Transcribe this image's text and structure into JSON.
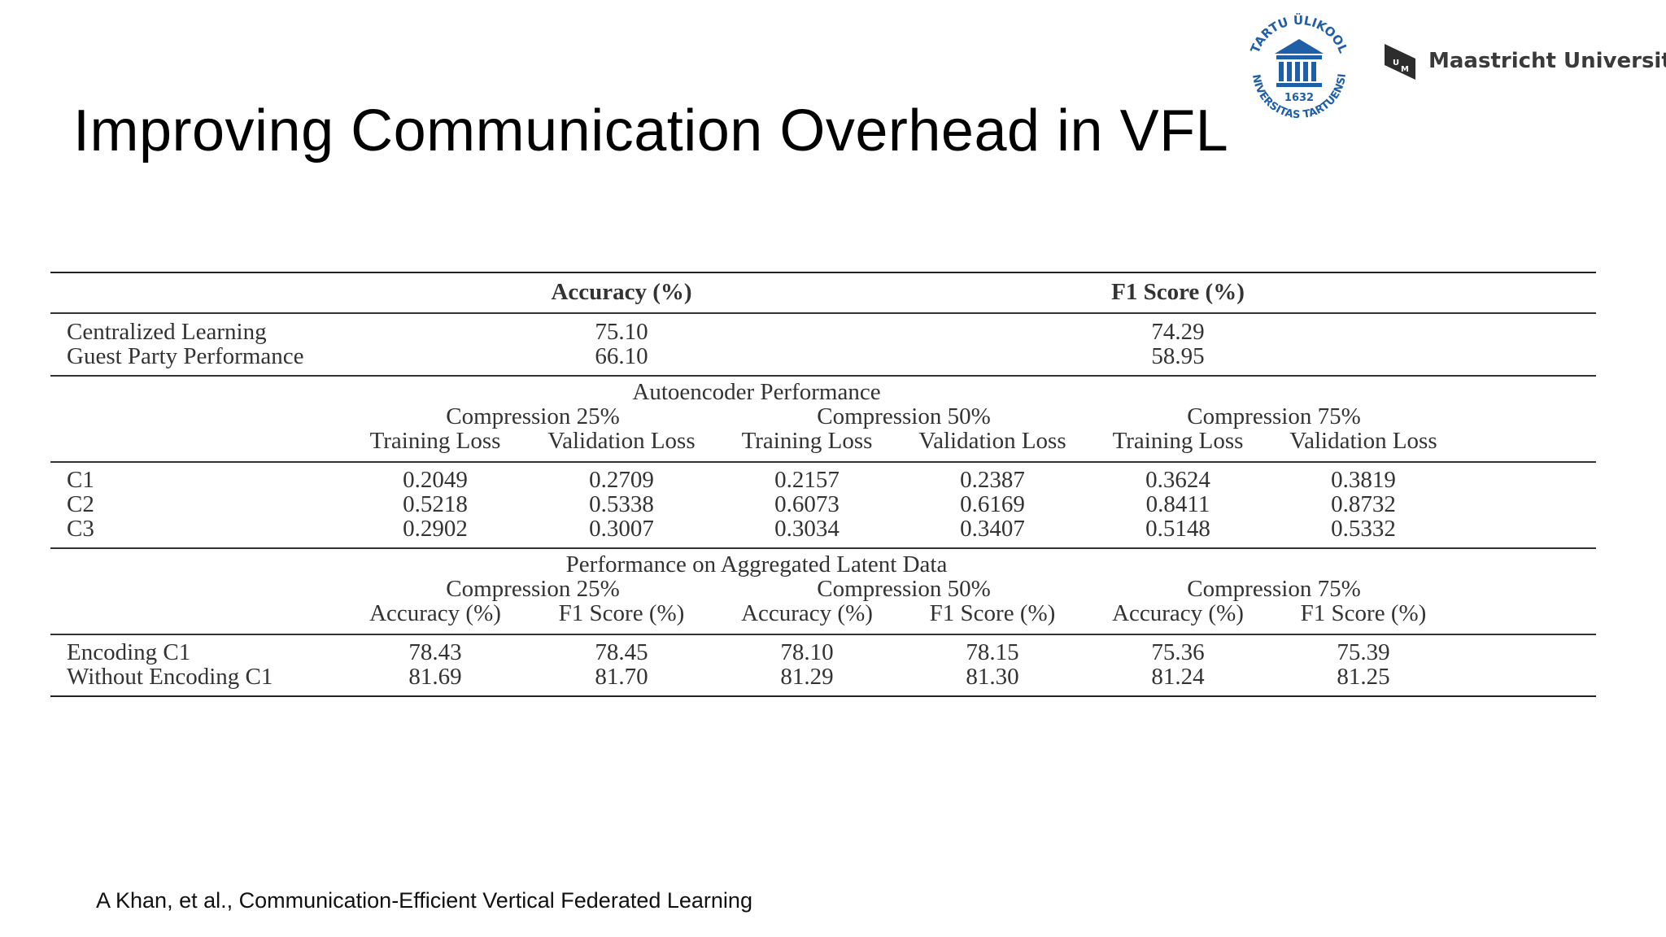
{
  "slide": {
    "title": "Improving Communication Overhead in VFL",
    "citation": "A Khan, et al., Communication-Efficient Vertical Federated Learning"
  },
  "logos": {
    "tartu": "TARTU ÜLIKOOL · UNIVERSITAS TARTUENSIS · 1632",
    "um_name": "Maastricht University",
    "um_mark": "UM"
  },
  "table": {
    "header": {
      "accuracy": "Accuracy (%)",
      "f1": "F1 Score (%)"
    },
    "baseline": [
      {
        "label": "Centralized Learning",
        "accuracy": "75.10",
        "f1": "74.29"
      },
      {
        "label": "Guest Party Performance",
        "accuracy": "66.10",
        "f1": "58.95"
      }
    ],
    "autoencoder": {
      "title": "Autoencoder Performance",
      "groups": [
        "Compression 25%",
        "Compression 50%",
        "Compression 75%"
      ],
      "subheaders": [
        "Training Loss",
        "Validation Loss",
        "Training Loss",
        "Validation Loss",
        "Training Loss",
        "Validation Loss"
      ],
      "rows": [
        {
          "label": "C1",
          "values": [
            "0.2049",
            "0.2709",
            "0.2157",
            "0.2387",
            "0.3624",
            "0.3819"
          ]
        },
        {
          "label": "C2",
          "values": [
            "0.5218",
            "0.5338",
            "0.6073",
            "0.6169",
            "0.8411",
            "0.8732"
          ]
        },
        {
          "label": "C3",
          "values": [
            "0.2902",
            "0.3007",
            "0.3034",
            "0.3407",
            "0.5148",
            "0.5332"
          ]
        }
      ]
    },
    "aggregated": {
      "title": "Performance on Aggregated Latent Data",
      "groups": [
        "Compression 25%",
        "Compression 50%",
        "Compression 75%"
      ],
      "subheaders": [
        "Accuracy (%)",
        "F1 Score (%)",
        "Accuracy (%)",
        "F1 Score (%)",
        "Accuracy (%)",
        "F1 Score (%)"
      ],
      "rows": [
        {
          "label": "Encoding C1",
          "values": [
            "78.43",
            "78.45",
            "78.10",
            "78.15",
            "75.36",
            "75.39"
          ]
        },
        {
          "label": "Without Encoding C1",
          "values": [
            "81.69",
            "81.70",
            "81.29",
            "81.30",
            "81.24",
            "81.25"
          ]
        }
      ]
    }
  }
}
